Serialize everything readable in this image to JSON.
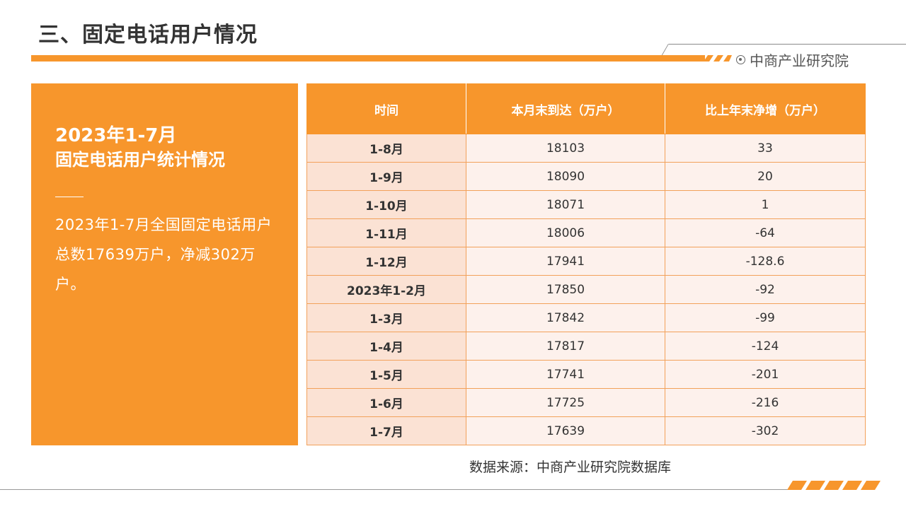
{
  "header": {
    "title": "三、固定电话用户情况",
    "logo_text": "中商产业研究院",
    "accent_color": "#f7962c"
  },
  "left_panel": {
    "year": "2023年1-7月",
    "subtitle": "固定电话用户统计情况",
    "description": "2023年1-7月全国固定电话用户总数17639万户，净减302万户。"
  },
  "table": {
    "headers": [
      "时间",
      "本月末到达（万户）",
      "比上年末净增（万户）"
    ],
    "rows": [
      [
        "1-8月",
        "18103",
        "33"
      ],
      [
        "1-9月",
        "18090",
        "20"
      ],
      [
        "1-10月",
        "18071",
        "1"
      ],
      [
        "1-11月",
        "18006",
        "-64"
      ],
      [
        "1-12月",
        "17941",
        "-128.6"
      ],
      [
        "2023年1-2月",
        "17850",
        "-92"
      ],
      [
        "1-3月",
        "17842",
        "-99"
      ],
      [
        "1-4月",
        "17817",
        "-124"
      ],
      [
        "1-5月",
        "17741",
        "-201"
      ],
      [
        "1-6月",
        "17725",
        "-216"
      ],
      [
        "1-7月",
        "17639",
        "-302"
      ]
    ]
  },
  "footer": {
    "source": "数据来源：中商产业研究院数据库"
  }
}
